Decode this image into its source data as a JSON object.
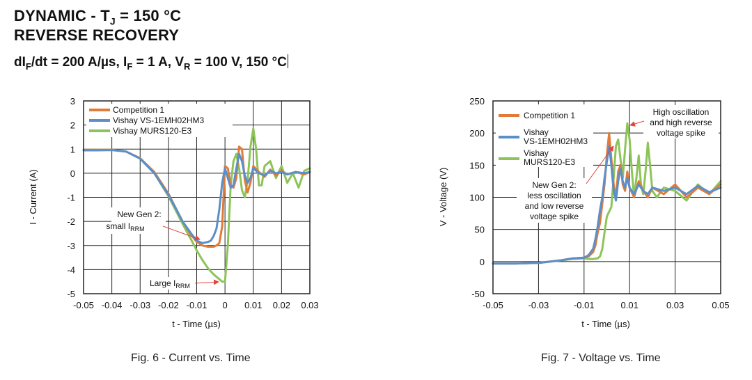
{
  "header": {
    "line1_pre": "DYNAMIC - T",
    "line1_sub": "J",
    "line1_post": " = 150 °C",
    "line2": "REVERSE RECOVERY",
    "line3_a": "dI",
    "line3_a_sub": "F",
    "line3_b": "/dt = 200 A/µs, I",
    "line3_b_sub": "F",
    "line3_c": " = 1 A, V",
    "line3_c_sub": "R",
    "line3_d": " = 100 V, 150 °C"
  },
  "colors": {
    "competition": "#e07b39",
    "vishay_new": "#5b8fc9",
    "vishay_old": "#8dc45a",
    "annotation_arrow": "#e0473f",
    "grid": "#222222"
  },
  "chart_data": [
    {
      "type": "line",
      "caption": "Fig. 6 - Current vs. Time",
      "xlabel": "t - Time (µs)",
      "ylabel": "I - Current (A)",
      "xlim": [
        -0.05,
        0.03
      ],
      "ylim": [
        -5,
        3
      ],
      "xticks": [
        "-0.05",
        "-0.04",
        "-0.03",
        "-0.02",
        "-0.01",
        "0",
        "0.01",
        "0.02",
        "0.03"
      ],
      "yticks": [
        "3",
        "2",
        "1",
        "0",
        "-1",
        "-2",
        "-3",
        "-4",
        "-5"
      ],
      "grid": true,
      "legend_position": "top-left",
      "legend": [
        "Competition 1",
        "Vishay VS-1EMH02HM3",
        "Vishay MURS120-E3"
      ],
      "annotations": {
        "a1_line1": "New Gen 2:",
        "a1_line2": "small I",
        "a1_line2_sub": "RRM",
        "a2": "Large I",
        "a2_sub": "RRM"
      },
      "series": [
        {
          "name": "Competition 1",
          "x": [
            -0.05,
            -0.045,
            -0.04,
            -0.035,
            -0.03,
            -0.025,
            -0.02,
            -0.015,
            -0.012,
            -0.01,
            -0.008,
            -0.006,
            -0.004,
            -0.003,
            -0.002,
            -0.001,
            0.0,
            0.001,
            0.002,
            0.003,
            0.004,
            0.005,
            0.006,
            0.007,
            0.008,
            0.009,
            0.01,
            0.012,
            0.014,
            0.016,
            0.018,
            0.02,
            0.022,
            0.025,
            0.028,
            0.03
          ],
          "y": [
            0.97,
            0.97,
            0.97,
            0.9,
            0.62,
            0.05,
            -0.85,
            -2.0,
            -2.55,
            -2.85,
            -3.0,
            -3.05,
            -3.05,
            -3.0,
            -2.9,
            -2.2,
            0.3,
            0.2,
            -0.5,
            -0.6,
            -0.2,
            1.1,
            1.0,
            -0.3,
            -0.8,
            -0.4,
            0.3,
            0.05,
            -0.15,
            0.15,
            -0.1,
            0.1,
            -0.05,
            0.05,
            -0.05,
            0.05
          ]
        },
        {
          "name": "Vishay VS-1EMH02HM3",
          "x": [
            -0.05,
            -0.045,
            -0.04,
            -0.035,
            -0.03,
            -0.025,
            -0.02,
            -0.015,
            -0.012,
            -0.01,
            -0.008,
            -0.006,
            -0.005,
            -0.004,
            -0.003,
            -0.002,
            -0.001,
            0.0,
            0.001,
            0.002,
            0.003,
            0.004,
            0.005,
            0.006,
            0.007,
            0.008,
            0.009,
            0.01,
            0.012,
            0.014,
            0.016,
            0.018,
            0.02,
            0.022,
            0.025,
            0.028,
            0.03
          ],
          "y": [
            0.95,
            0.95,
            0.96,
            0.9,
            0.6,
            0.0,
            -0.9,
            -2.0,
            -2.5,
            -2.8,
            -2.9,
            -2.85,
            -2.8,
            -2.6,
            -2.3,
            -1.5,
            -0.4,
            0.2,
            -0.2,
            -0.6,
            -0.5,
            0.2,
            0.8,
            0.5,
            -0.1,
            -0.4,
            -0.2,
            0.2,
            0.0,
            -0.1,
            0.1,
            0.0,
            0.05,
            -0.05,
            0.05,
            0.0,
            0.05
          ]
        },
        {
          "name": "Vishay MURS120-E3",
          "x": [
            -0.05,
            -0.045,
            -0.04,
            -0.035,
            -0.03,
            -0.025,
            -0.02,
            -0.015,
            -0.012,
            -0.01,
            -0.008,
            -0.006,
            -0.004,
            -0.002,
            -0.001,
            0.0,
            0.001,
            0.002,
            0.003,
            0.004,
            0.005,
            0.006,
            0.007,
            0.008,
            0.009,
            0.01,
            0.011,
            0.012,
            0.013,
            0.014,
            0.016,
            0.018,
            0.02,
            0.022,
            0.024,
            0.026,
            0.028,
            0.03
          ],
          "y": [
            0.97,
            0.97,
            0.97,
            0.9,
            0.62,
            0.0,
            -0.95,
            -2.1,
            -2.75,
            -3.2,
            -3.6,
            -3.95,
            -4.2,
            -4.4,
            -4.5,
            -4.5,
            -3.0,
            -0.5,
            0.5,
            0.8,
            0.2,
            -0.7,
            -1.0,
            -0.3,
            1.1,
            1.85,
            1.0,
            -0.5,
            -0.5,
            0.3,
            0.5,
            -0.2,
            0.3,
            -0.4,
            0.0,
            -0.6,
            0.1,
            0.2
          ]
        }
      ]
    },
    {
      "type": "line",
      "caption": "Fig. 7 - Voltage vs. Time",
      "xlabel": "t - Time (µs)",
      "ylabel": "V - Voltage (V)",
      "xlim": [
        -0.05,
        0.05
      ],
      "ylim": [
        -50,
        250
      ],
      "xticks": [
        "-0.05",
        "-0.03",
        "-0.01",
        "0.01",
        "0.03",
        "0.05"
      ],
      "yticks": [
        "250",
        "200",
        "150",
        "100",
        "50",
        "0",
        "-50"
      ],
      "grid": true,
      "legend_position": "top-left",
      "legend": [
        "Competition 1",
        "Vishay VS-1EMH02HM3",
        "Vishay MURS120-E3"
      ],
      "annotations": {
        "b1_line1": "High oscillation",
        "b1_line2": "and high reverse",
        "b1_line3": "voltage spike",
        "b2_line1": "New Gen 2:",
        "b2_line2": "less oscillation",
        "b2_line3": "and low reverse",
        "b2_line4": "voltage spike"
      },
      "series": [
        {
          "name": "Competition 1",
          "x": [
            -0.05,
            -0.04,
            -0.03,
            -0.02,
            -0.015,
            -0.01,
            -0.008,
            -0.006,
            -0.005,
            -0.004,
            -0.003,
            -0.002,
            -0.001,
            0.0,
            0.001,
            0.002,
            0.003,
            0.004,
            0.005,
            0.006,
            0.007,
            0.008,
            0.009,
            0.01,
            0.012,
            0.014,
            0.016,
            0.018,
            0.02,
            0.025,
            0.03,
            0.035,
            0.04,
            0.045,
            0.05
          ],
          "y": [
            -3,
            -3,
            -2,
            2,
            5,
            6,
            8,
            15,
            25,
            45,
            60,
            90,
            120,
            165,
            200,
            160,
            120,
            100,
            140,
            150,
            120,
            110,
            140,
            115,
            100,
            125,
            110,
            100,
            115,
            105,
            120,
            100,
            115,
            105,
            120
          ]
        },
        {
          "name": "Vishay VS-1EMH02HM3",
          "x": [
            -0.05,
            -0.04,
            -0.03,
            -0.02,
            -0.015,
            -0.01,
            -0.008,
            -0.006,
            -0.005,
            -0.004,
            -0.003,
            -0.002,
            -0.001,
            0.0,
            0.001,
            0.002,
            0.003,
            0.004,
            0.005,
            0.006,
            0.007,
            0.008,
            0.009,
            0.01,
            0.012,
            0.014,
            0.016,
            0.018,
            0.02,
            0.025,
            0.03,
            0.035,
            0.04,
            0.045,
            0.05
          ],
          "y": [
            -3,
            -3,
            -2,
            2,
            5,
            6,
            10,
            20,
            35,
            55,
            80,
            100,
            130,
            155,
            180,
            150,
            110,
            95,
            125,
            145,
            125,
            115,
            130,
            115,
            105,
            120,
            110,
            105,
            115,
            110,
            115,
            105,
            118,
            108,
            115
          ]
        },
        {
          "name": "Vishay MURS120-E3",
          "x": [
            -0.05,
            -0.04,
            -0.03,
            -0.02,
            -0.015,
            -0.01,
            -0.008,
            -0.006,
            -0.004,
            -0.003,
            -0.002,
            -0.001,
            0.0,
            0.002,
            0.003,
            0.004,
            0.005,
            0.006,
            0.007,
            0.008,
            0.009,
            0.01,
            0.011,
            0.012,
            0.013,
            0.014,
            0.015,
            0.016,
            0.017,
            0.018,
            0.019,
            0.02,
            0.022,
            0.025,
            0.03,
            0.035,
            0.04,
            0.045,
            0.05
          ],
          "y": [
            -3,
            -3,
            -2,
            2,
            4,
            5,
            4,
            4,
            5,
            8,
            20,
            45,
            70,
            85,
            130,
            180,
            190,
            160,
            130,
            175,
            215,
            190,
            140,
            100,
            130,
            165,
            120,
            105,
            140,
            185,
            150,
            110,
            100,
            115,
            110,
            95,
            120,
            105,
            125
          ]
        }
      ]
    }
  ]
}
